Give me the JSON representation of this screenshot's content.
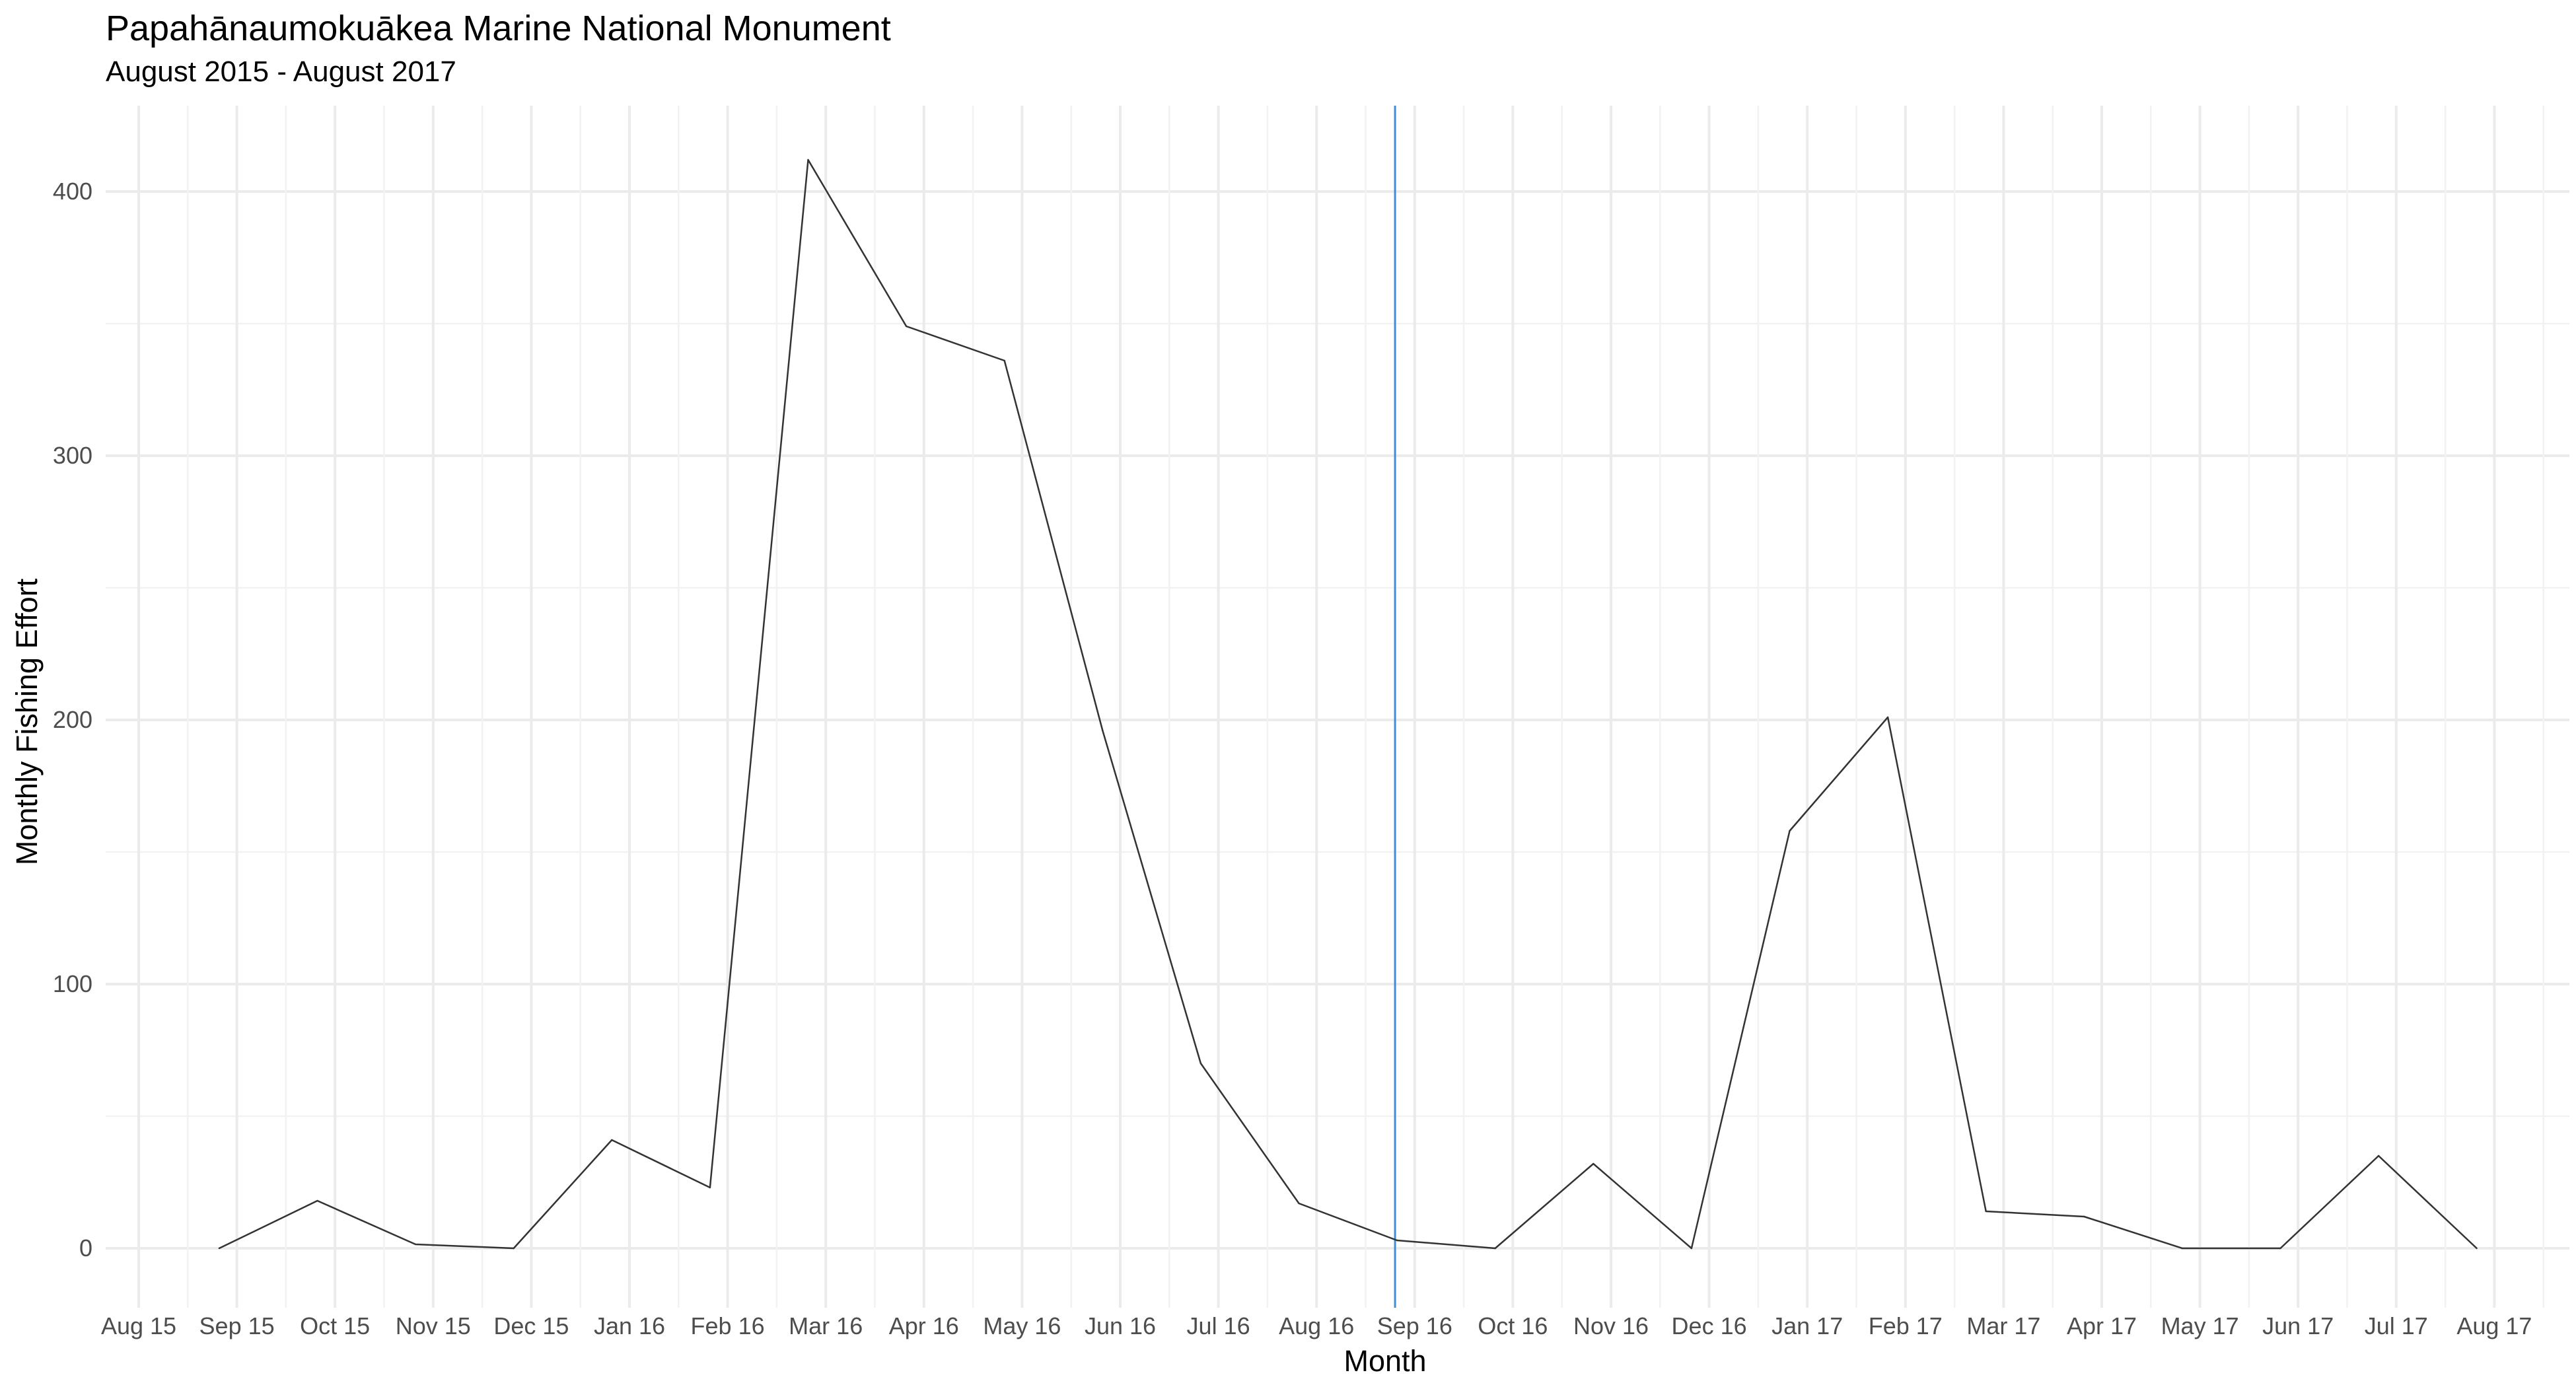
{
  "title": "Papahānaumokuākea Marine National Monument",
  "subtitle": "August 2015 - August 2017",
  "chart_data": {
    "type": "line",
    "title": "Papahānaumokuākea Marine National Monument",
    "subtitle": "August 2015 - August 2017",
    "xlabel": "Month",
    "ylabel": "Monthly Fishing Effort",
    "x_ticks": [
      "Aug 15",
      "Sep 15",
      "Oct 15",
      "Nov 15",
      "Dec 15",
      "Jan 16",
      "Feb 16",
      "Mar 16",
      "Apr 16",
      "May 16",
      "Jun 16",
      "Jul 16",
      "Aug 16",
      "Sep 16",
      "Oct 16",
      "Nov 16",
      "Dec 16",
      "Jan 17",
      "Feb 17",
      "Mar 17",
      "Apr 17",
      "May 17",
      "Jun 17",
      "Jul 17",
      "Aug 17"
    ],
    "y_ticks": [
      0,
      100,
      200,
      300,
      400
    ],
    "ylim": [
      -22,
      432
    ],
    "grid": true,
    "series": [
      {
        "color": "#333333",
        "x": [
          "Aug 15",
          "Sep 15",
          "Oct 15",
          "Nov 15",
          "Dec 15",
          "Jan 16",
          "Feb 16",
          "Mar 16",
          "Apr 16",
          "May 16",
          "Jun 16",
          "Jul 16",
          "Aug 16",
          "Sep 16",
          "Oct 16",
          "Nov 16",
          "Dec 16",
          "Jan 17",
          "Feb 17",
          "Mar 17",
          "Apr 17",
          "May 17",
          "Jun 17",
          "Jul 17"
        ],
        "values": [
          0,
          18,
          1.5,
          0,
          41,
          23,
          412,
          349,
          336,
          196,
          70,
          17,
          3,
          0,
          32,
          0,
          158,
          201,
          14,
          12,
          0,
          0,
          35,
          0
        ]
      }
    ],
    "vline": {
      "x": "Sep 16",
      "color": "#3d8fd9"
    }
  }
}
